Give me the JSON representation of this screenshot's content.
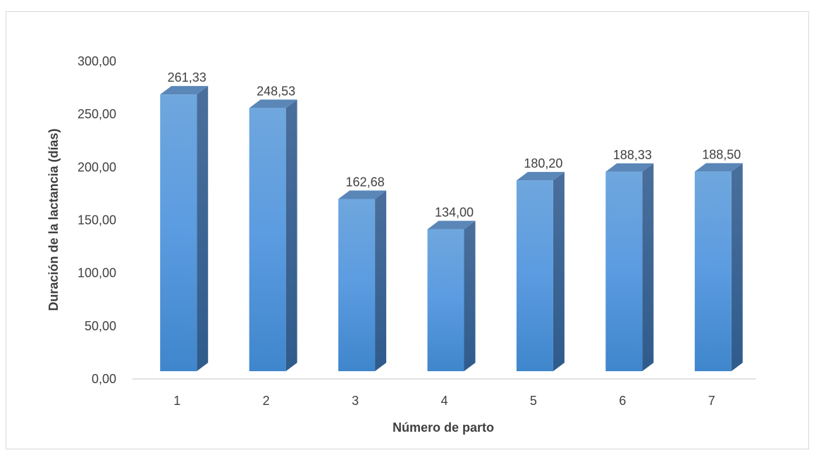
{
  "chart_data": {
    "type": "bar",
    "categories": [
      "1",
      "2",
      "3",
      "4",
      "5",
      "6",
      "7"
    ],
    "values": [
      261.33,
      248.53,
      162.68,
      134.0,
      180.2,
      188.33,
      188.5
    ],
    "data_labels": [
      "261,33",
      "248,53",
      "162,68",
      "134,00",
      "180,20",
      "188,33",
      "188,50"
    ],
    "y_ticks": [
      0,
      50,
      100,
      150,
      200,
      250,
      300
    ],
    "y_tick_labels": [
      "0,00",
      "50,00",
      "100,00",
      "150,00",
      "200,00",
      "250,00",
      "300,00"
    ],
    "ylim": [
      0,
      300
    ],
    "xlabel": "Número de parto",
    "ylabel": "Duración de la lactancia (días)",
    "title": "",
    "grid": false,
    "legend": false,
    "style": "3d-column",
    "colors": {
      "front_top": "#6fa7de",
      "front_bottom": "#3f86cc",
      "side": "#3b6596",
      "top": "#5a87b8",
      "axis": "#d9d9d9"
    }
  }
}
